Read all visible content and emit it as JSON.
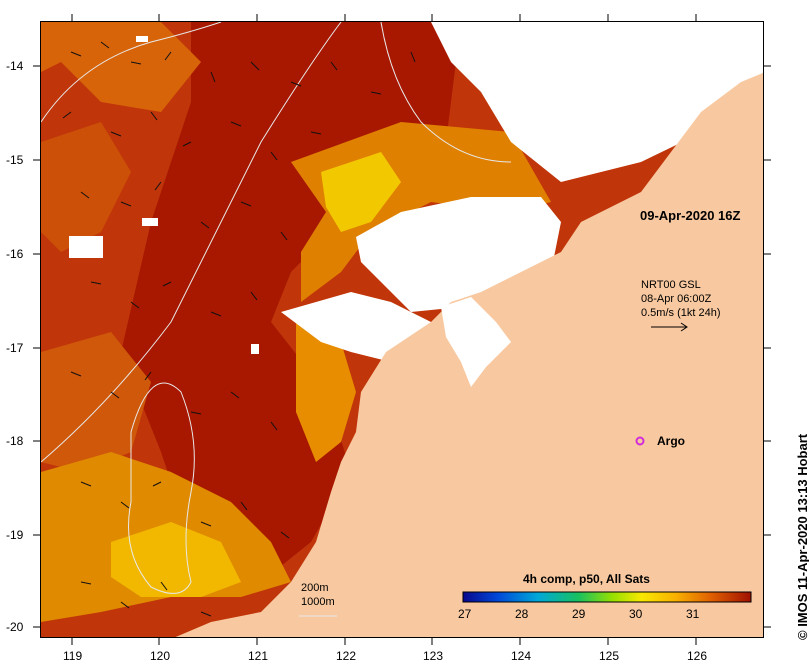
{
  "date_label": "09-Apr-2020 16Z",
  "current_legend": {
    "line1": "NRT00 GSL",
    "line2": "08-Apr 06:00Z",
    "line3": "0.5m/s (1kt 24h)"
  },
  "argo_label": "Argo",
  "depth_legend": {
    "line1": "200m",
    "line2": "1000m"
  },
  "colorbar": {
    "title": "4h comp, p50, All Sats",
    "ticks": [
      "27",
      "28",
      "29",
      "30",
      "31"
    ]
  },
  "credit": "© IMOS 11-Apr-2020 13:13 Hobart",
  "axes": {
    "x_ticks": [
      "119",
      "120",
      "121",
      "122",
      "123",
      "124",
      "125",
      "126"
    ],
    "y_ticks": [
      "-14",
      "-15",
      "-16",
      "-17",
      "-18",
      "-19",
      "-20"
    ]
  },
  "colors": {
    "land": "#f8c9a0",
    "sst_hot": "#a81800",
    "sst_warm": "#cc4a00",
    "sst_mid": "#e8a000",
    "sst_cool": "#f0d800",
    "cloud": "#ffffff",
    "argo": "#d02cd8"
  }
}
